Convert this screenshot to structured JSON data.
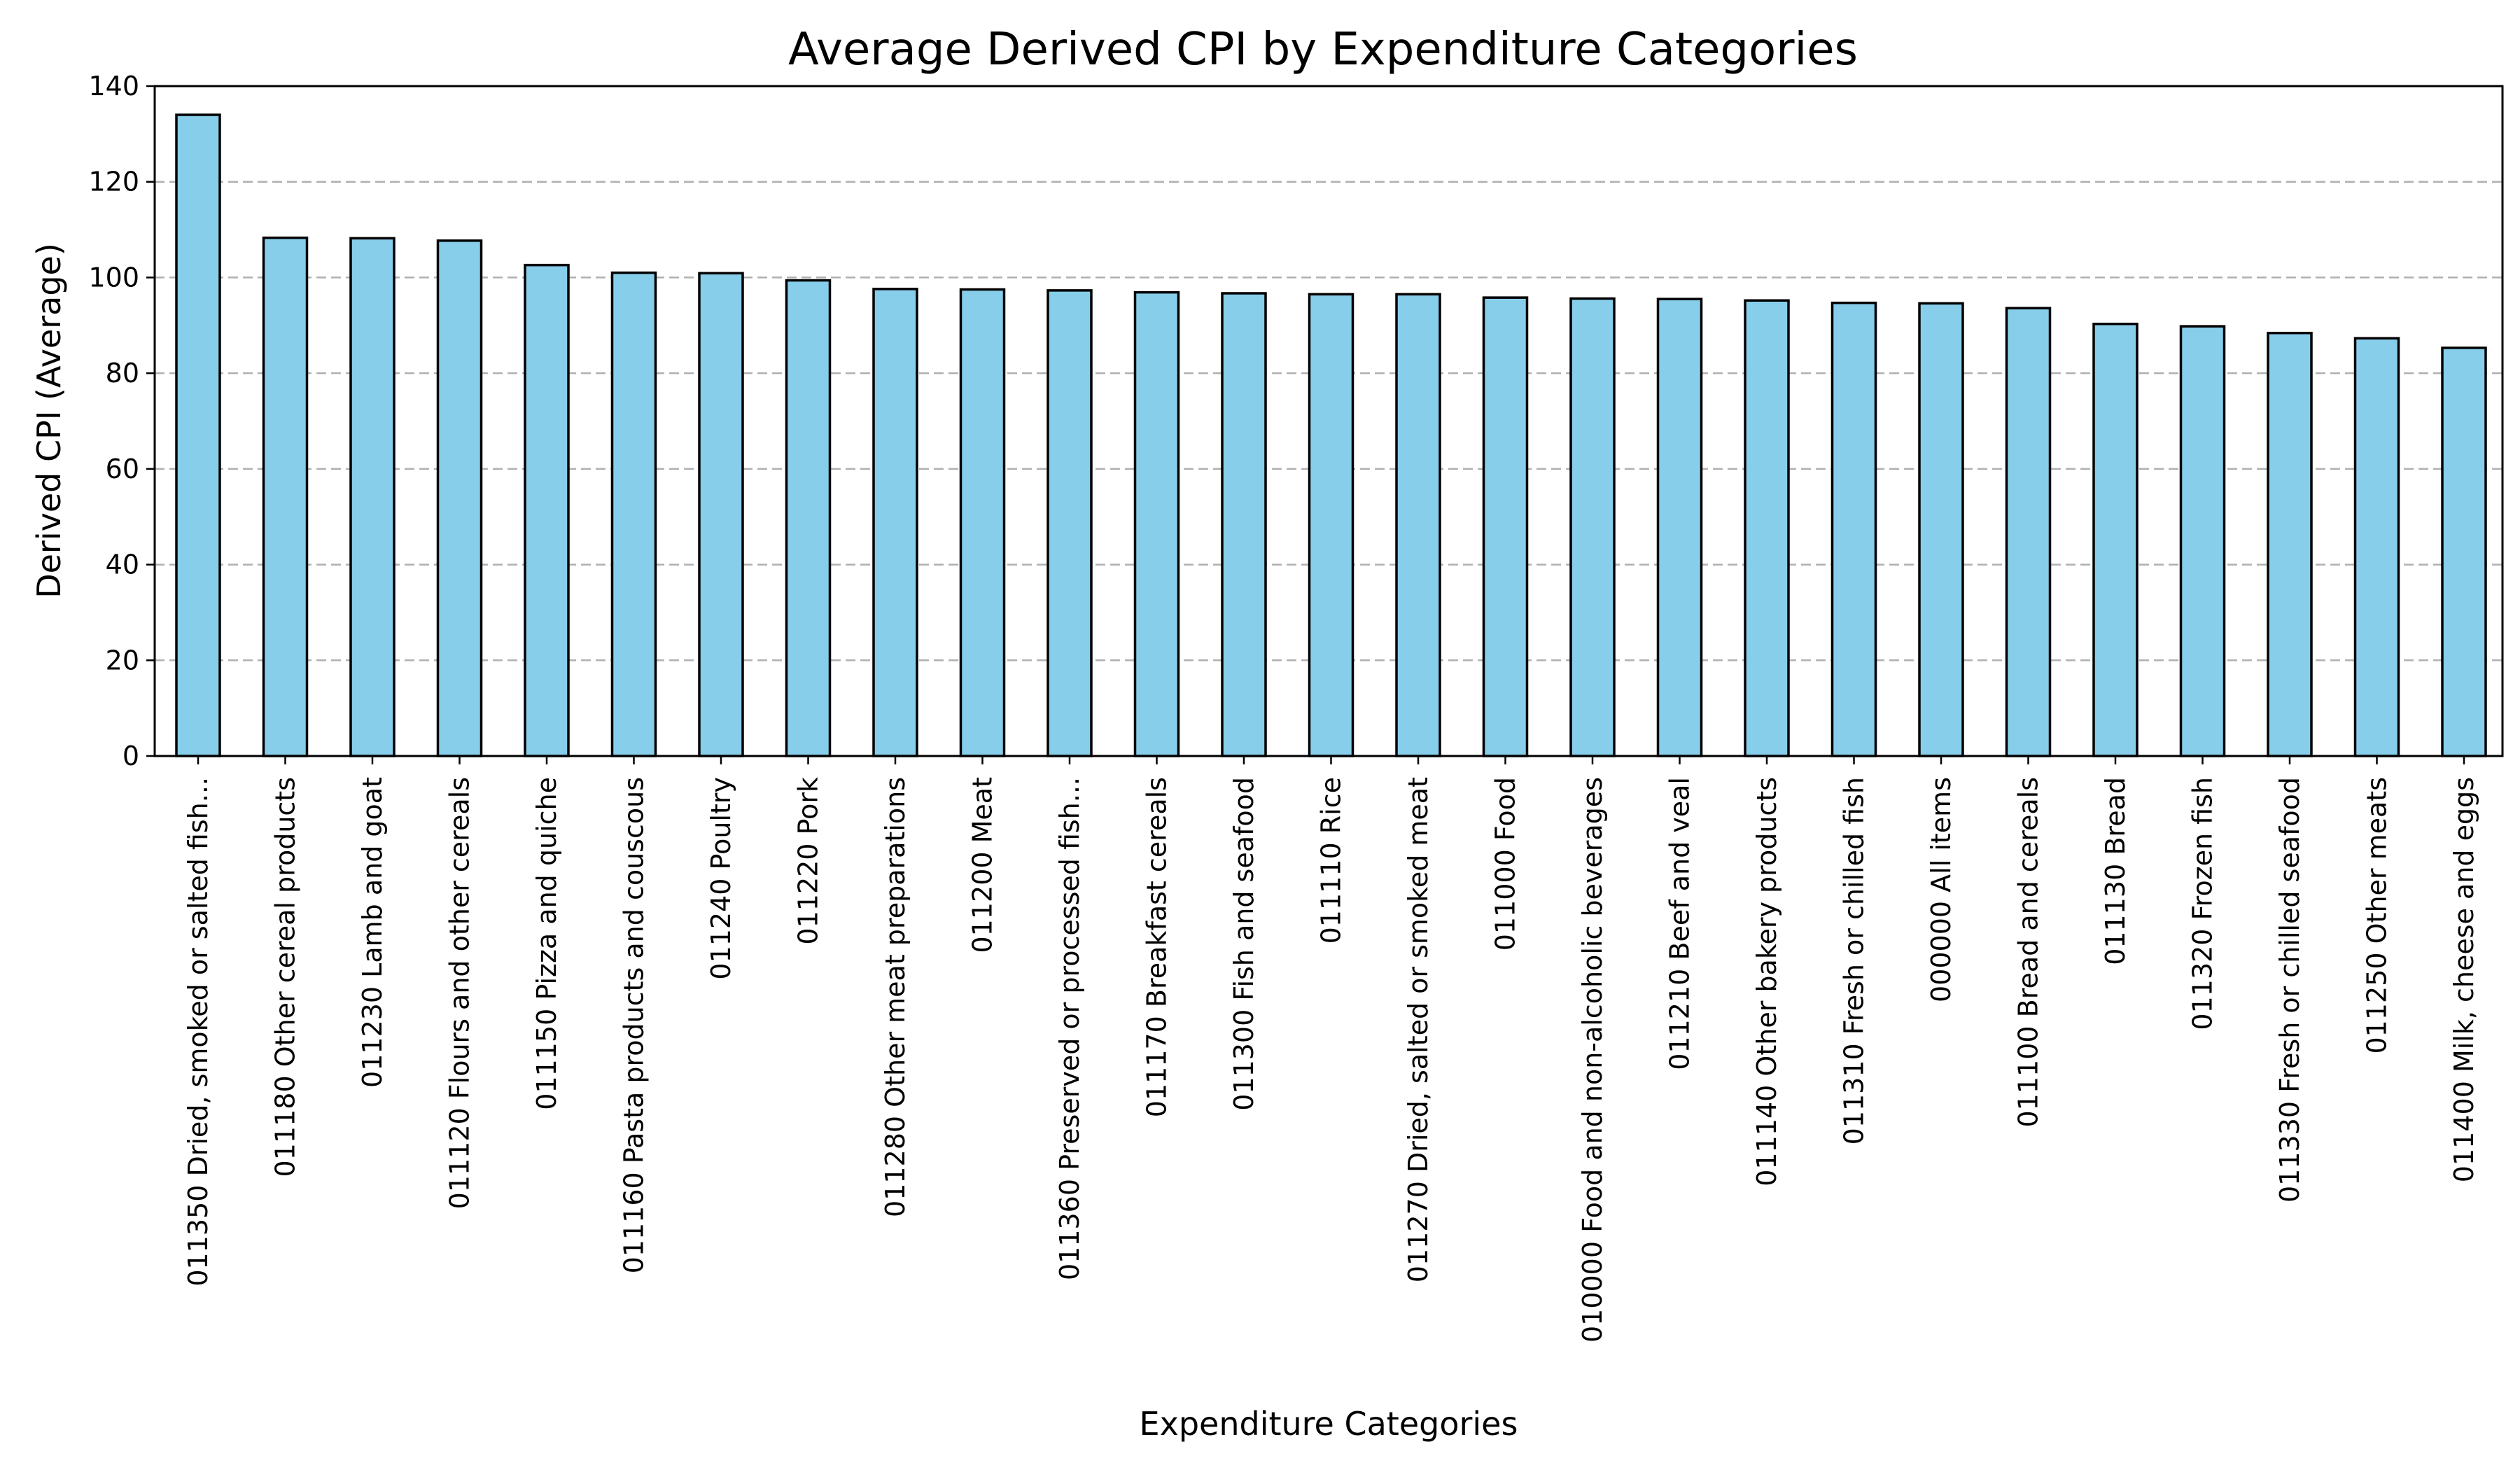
{
  "chart_data": {
    "type": "bar",
    "title": "Average Derived CPI by Expenditure Categories",
    "xlabel": "Expenditure Categories",
    "ylabel": "Derived CPI (Average)",
    "ylim": [
      0,
      140
    ],
    "yticks": [
      0,
      20,
      40,
      60,
      80,
      100,
      120,
      140
    ],
    "grid": "y",
    "bar_color": "#87CEEB",
    "edge_color": "#000000",
    "categories": [
      "011350 Dried, smoked or salted fish...",
      "011180 Other cereal products",
      "011230 Lamb and goat",
      "011120 Flours and other cereals",
      "011150 Pizza and quiche",
      "011160 Pasta products and couscous",
      "011240 Poultry",
      "011220 Pork",
      "011280 Other meat preparations",
      "011200 Meat",
      "011360 Preserved or processed fish...",
      "011170 Breakfast cereals",
      "011300 Fish and seafood",
      "011110 Rice",
      "011270 Dried, salted or smoked meat",
      "011000 Food",
      "010000 Food and non-alcoholic beverages",
      "011210 Beef and veal",
      "011140 Other bakery products",
      "011310 Fresh or chilled fish",
      "000000 All items",
      "011100 Bread and cereals",
      "011130 Bread",
      "011320 Frozen fish",
      "011330 Fresh or chilled seafood",
      "011250 Other meats",
      "011400 Milk, cheese and eggs"
    ],
    "values": [
      134.0,
      108.3,
      108.2,
      107.7,
      102.6,
      101.0,
      100.9,
      99.4,
      97.6,
      97.5,
      97.3,
      96.9,
      96.7,
      96.5,
      96.5,
      95.8,
      95.6,
      95.5,
      95.2,
      94.7,
      94.6,
      93.6,
      90.3,
      89.8,
      88.4,
      87.3,
      85.3
    ]
  }
}
